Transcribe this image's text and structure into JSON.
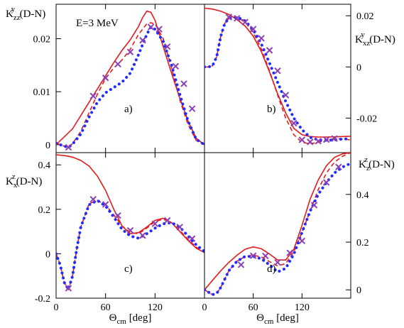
{
  "figure": {
    "energy_label": "E=3 MeV"
  },
  "styles": {
    "solid": {
      "color": "#e41a1c"
    },
    "dashed": {
      "color": "#e41a1c"
    },
    "dotted": {
      "color": "#1f2bff"
    },
    "cross": {
      "color": "#8a3fb5"
    }
  },
  "chart_data": [
    {
      "type": "line",
      "panel_letter": "a)",
      "ylabel": {
        "main": "K",
        "sub": "zz",
        "sup": "y",
        "tail": "(D-N)"
      },
      "xlabel": "",
      "xlim": [
        0,
        180
      ],
      "ylim": [
        -0.0015,
        0.0265
      ],
      "yticks": [
        0,
        0.01,
        0.02
      ],
      "yticklabels": [
        "0",
        "0.01",
        "0.02"
      ],
      "xticks": [
        0,
        60,
        120
      ],
      "xticklabels": [
        "",
        "",
        ""
      ],
      "series": [
        {
          "style": "solid",
          "x": [
            0,
            10,
            20,
            30,
            40,
            50,
            60,
            70,
            80,
            90,
            100,
            105,
            110,
            115,
            120,
            130,
            140,
            150,
            160,
            170,
            180
          ],
          "y": [
            0,
            0.0015,
            0.003,
            0.0055,
            0.008,
            0.0105,
            0.013,
            0.0155,
            0.0178,
            0.0198,
            0.0223,
            0.024,
            0.0252,
            0.025,
            0.0235,
            0.0185,
            0.0135,
            0.0088,
            0.0045,
            0.0012,
            0.0
          ]
        },
        {
          "style": "dashed",
          "x": [
            0,
            10,
            15,
            20,
            30,
            40,
            50,
            60,
            70,
            80,
            90,
            100,
            110,
            115,
            120,
            130,
            140,
            150,
            160,
            170,
            180
          ],
          "y": [
            0.0003,
            -0.0003,
            -0.0005,
            0.0002,
            0.0025,
            0.006,
            0.0095,
            0.0125,
            0.0145,
            0.016,
            0.018,
            0.0208,
            0.0228,
            0.023,
            0.0228,
            0.02,
            0.0145,
            0.0085,
            0.0038,
            0.0008,
            0.0
          ]
        },
        {
          "style": "dotted",
          "x": [
            0,
            10,
            15,
            20,
            30,
            40,
            50,
            60,
            70,
            80,
            90,
            100,
            110,
            115,
            120,
            130,
            140,
            150,
            160,
            170,
            180
          ],
          "y": [
            0.0003,
            -0.0003,
            -0.0005,
            0.0001,
            0.002,
            0.0052,
            0.008,
            0.0098,
            0.0108,
            0.0118,
            0.0135,
            0.017,
            0.0208,
            0.0222,
            0.0218,
            0.0195,
            0.015,
            0.0095,
            0.0045,
            0.001,
            0.0
          ]
        },
        {
          "style": "cross",
          "x": [
            15,
            45,
            60,
            75,
            90,
            105,
            115,
            125,
            135,
            145,
            155,
            165
          ],
          "y": [
            -0.0005,
            0.0092,
            0.0126,
            0.0152,
            0.0175,
            0.0197,
            0.0222,
            0.0218,
            0.0185,
            0.0148,
            0.0115,
            0.0068
          ]
        }
      ]
    },
    {
      "type": "line",
      "panel_letter": "b)",
      "ylabel": {
        "main": "K",
        "sub": "xz",
        "sup": "y",
        "tail": "(D-N)"
      },
      "xlabel": "",
      "xlim": [
        0,
        180
      ],
      "ylim": [
        -0.0335,
        0.0245
      ],
      "yticks": [
        0.02,
        0,
        -0.02
      ],
      "yticklabels": [
        "0.02",
        "0",
        "-0.02"
      ],
      "xticks": [
        0,
        60,
        120
      ],
      "xticklabels": [
        "",
        "",
        ""
      ],
      "series": [
        {
          "style": "solid",
          "x": [
            0,
            10,
            20,
            30,
            40,
            50,
            60,
            70,
            80,
            90,
            100,
            110,
            120,
            130,
            140,
            150,
            160,
            170,
            180
          ],
          "y": [
            0.023,
            0.0226,
            0.0218,
            0.0205,
            0.0185,
            0.016,
            0.012,
            0.006,
            -0.002,
            -0.0105,
            -0.018,
            -0.024,
            -0.0265,
            -0.0272,
            -0.0274,
            -0.0274,
            -0.0273,
            -0.0272,
            -0.0271
          ]
        },
        {
          "style": "dashed",
          "x": [
            0,
            5,
            10,
            15,
            20,
            25,
            30,
            40,
            50,
            60,
            70,
            80,
            90,
            100,
            110,
            120,
            130,
            140,
            150,
            160,
            170,
            180
          ],
          "y": [
            0,
            0,
            0.0005,
            0.004,
            0.012,
            0.017,
            0.019,
            0.0195,
            0.0175,
            0.0135,
            0.007,
            -0.0015,
            -0.011,
            -0.02,
            -0.0265,
            -0.0295,
            -0.03,
            -0.0295,
            -0.0285,
            -0.028,
            -0.0282,
            -0.0285
          ]
        },
        {
          "style": "dotted",
          "x": [
            0,
            5,
            10,
            15,
            20,
            25,
            30,
            40,
            50,
            60,
            70,
            80,
            90,
            100,
            110,
            120,
            130,
            140,
            150,
            160,
            170,
            180
          ],
          "y": [
            0,
            0,
            0.0005,
            0.004,
            0.012,
            0.017,
            0.019,
            0.0195,
            0.018,
            0.0145,
            0.009,
            0.0015,
            -0.006,
            -0.0135,
            -0.02,
            -0.0245,
            -0.0275,
            -0.0285,
            -0.0287,
            -0.0285,
            -0.0282,
            -0.028
          ]
        },
        {
          "style": "cross",
          "x": [
            30,
            40,
            50,
            60,
            70,
            80,
            90,
            100,
            110,
            120,
            130,
            140,
            150,
            160
          ],
          "y": [
            0.0195,
            0.019,
            0.0175,
            0.0148,
            0.0112,
            0.0065,
            -0.0015,
            -0.011,
            -0.022,
            -0.0285,
            -0.0293,
            -0.029,
            -0.0284,
            -0.028
          ]
        }
      ]
    },
    {
      "type": "line",
      "panel_letter": "c)",
      "ylabel": {
        "main": "K",
        "sub": "x",
        "sup": "z",
        "tail": "(D-N)"
      },
      "xlabel": {
        "main": "Θ",
        "sub": "cm",
        "tail": " [deg]"
      },
      "xlim": [
        0,
        180
      ],
      "ylim": [
        -0.2,
        0.455
      ],
      "yticks": [
        0.4,
        0.2,
        0,
        -0.2
      ],
      "yticklabels": [
        "0.4",
        "0.2",
        "0",
        "-0.2"
      ],
      "xticks": [
        0,
        60,
        120
      ],
      "xticklabels": [
        "0",
        "60",
        "120"
      ],
      "series": [
        {
          "style": "solid",
          "x": [
            0,
            10,
            20,
            30,
            40,
            50,
            60,
            70,
            80,
            90,
            100,
            110,
            120,
            130,
            140,
            150,
            160,
            170,
            180
          ],
          "y": [
            0.445,
            0.442,
            0.435,
            0.42,
            0.395,
            0.35,
            0.285,
            0.2,
            0.125,
            0.09,
            0.095,
            0.12,
            0.15,
            0.16,
            0.14,
            0.1,
            0.06,
            0.025,
            0.005
          ]
        },
        {
          "style": "dashed",
          "x": [
            0,
            5,
            10,
            15,
            20,
            25,
            30,
            40,
            50,
            60,
            70,
            80,
            90,
            100,
            110,
            120,
            130,
            140,
            150,
            160,
            170,
            180
          ],
          "y": [
            0,
            -0.05,
            -0.13,
            -0.16,
            -0.1,
            0.02,
            0.12,
            0.225,
            0.24,
            0.22,
            0.175,
            0.125,
            0.095,
            0.09,
            0.115,
            0.145,
            0.155,
            0.14,
            0.105,
            0.065,
            0.03,
            0.005
          ]
        },
        {
          "style": "dotted",
          "x": [
            0,
            5,
            10,
            15,
            20,
            25,
            30,
            40,
            50,
            60,
            70,
            80,
            90,
            100,
            110,
            120,
            130,
            140,
            150,
            160,
            170,
            180
          ],
          "y": [
            0,
            -0.05,
            -0.13,
            -0.16,
            -0.1,
            0.02,
            0.12,
            0.22,
            0.24,
            0.215,
            0.165,
            0.11,
            0.08,
            0.07,
            0.09,
            0.115,
            0.135,
            0.14,
            0.12,
            0.08,
            0.04,
            0.01
          ]
        },
        {
          "style": "cross",
          "x": [
            15,
            45,
            60,
            75,
            90,
            105,
            120,
            135,
            150,
            165
          ],
          "y": [
            -0.155,
            0.245,
            0.222,
            0.172,
            0.105,
            0.082,
            0.135,
            0.15,
            0.12,
            0.068
          ]
        }
      ]
    },
    {
      "type": "line",
      "panel_letter": "d)",
      "ylabel": {
        "main": "K",
        "sub": "z",
        "sup": "z",
        "tail": "(D-N)"
      },
      "xlabel": {
        "main": "Θ",
        "sub": "cm",
        "tail": " [deg]"
      },
      "xlim": [
        0,
        180
      ],
      "ylim": [
        -0.035,
        0.575
      ],
      "yticks": [
        0.4,
        0.2,
        0
      ],
      "yticklabels": [
        "0.4",
        "0.2",
        "0"
      ],
      "xticks": [
        0,
        60,
        120
      ],
      "xticklabels": [
        "0",
        "60",
        "120"
      ],
      "series": [
        {
          "style": "solid",
          "x": [
            0,
            10,
            20,
            30,
            40,
            50,
            60,
            70,
            80,
            90,
            100,
            110,
            120,
            130,
            140,
            150,
            160,
            170,
            180
          ],
          "y": [
            0,
            0.04,
            0.08,
            0.115,
            0.145,
            0.17,
            0.18,
            0.172,
            0.15,
            0.125,
            0.125,
            0.17,
            0.27,
            0.38,
            0.46,
            0.52,
            0.555,
            0.57,
            0.575
          ]
        },
        {
          "style": "dashed",
          "x": [
            0,
            5,
            10,
            15,
            20,
            25,
            30,
            40,
            50,
            60,
            70,
            80,
            90,
            100,
            110,
            120,
            130,
            140,
            150,
            160,
            170,
            180
          ],
          "y": [
            0,
            -0.01,
            -0.02,
            -0.015,
            0.01,
            0.045,
            0.08,
            0.12,
            0.14,
            0.145,
            0.138,
            0.118,
            0.1,
            0.11,
            0.16,
            0.24,
            0.33,
            0.42,
            0.49,
            0.535,
            0.56,
            0.575
          ]
        },
        {
          "style": "dotted",
          "x": [
            0,
            5,
            10,
            15,
            20,
            25,
            30,
            40,
            50,
            60,
            70,
            80,
            90,
            100,
            110,
            120,
            130,
            140,
            150,
            160,
            170,
            180
          ],
          "y": [
            0,
            -0.01,
            -0.02,
            -0.015,
            0.01,
            0.045,
            0.08,
            0.12,
            0.14,
            0.14,
            0.13,
            0.105,
            0.075,
            0.09,
            0.15,
            0.24,
            0.33,
            0.4,
            0.45,
            0.49,
            0.515,
            0.53
          ]
        },
        {
          "style": "cross",
          "x": [
            45,
            60,
            75,
            90,
            105,
            120,
            135,
            150,
            165
          ],
          "y": [
            0.105,
            0.143,
            0.142,
            0.115,
            0.155,
            0.205,
            0.355,
            0.45,
            0.515
          ]
        }
      ]
    }
  ]
}
